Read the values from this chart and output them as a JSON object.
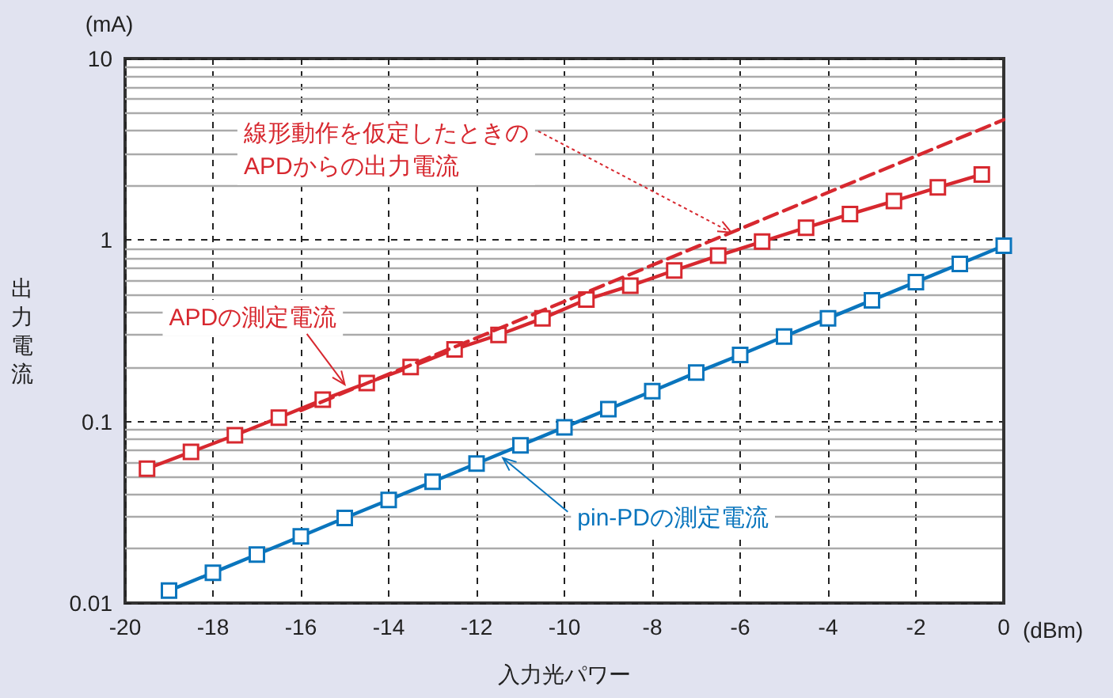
{
  "chart_data": {
    "type": "line",
    "xlabel": "入力光パワー",
    "ylabel": "出力電流",
    "xlim": [
      -20,
      0
    ],
    "xticks": [
      -20,
      -18,
      -16,
      -14,
      -12,
      -10,
      -8,
      -6,
      -4,
      -2,
      0
    ],
    "ylim": [
      0.01,
      10
    ],
    "log": "y",
    "yticks": [
      0.01,
      {
        "value": 0.02,
        "label": null
      },
      {
        "value": 0.03,
        "label": null
      },
      {
        "value": 0.04,
        "label": null
      },
      {
        "value": 0.05,
        "label": null
      },
      {
        "value": 0.06,
        "label": null
      },
      {
        "value": 0.07,
        "label": null
      },
      {
        "value": 0.08,
        "label": null
      },
      {
        "value": 0.09,
        "label": null
      },
      0.1,
      {
        "value": 0.2,
        "label": null
      },
      {
        "value": 0.3,
        "label": null
      },
      {
        "value": 0.4,
        "label": null
      },
      {
        "value": 0.5,
        "label": null
      },
      {
        "value": 0.6,
        "label": null
      },
      {
        "value": 0.7,
        "label": null
      },
      {
        "value": 0.8,
        "label": null
      },
      {
        "value": 0.9,
        "label": null
      },
      1,
      {
        "value": 2,
        "label": null
      },
      {
        "value": 3,
        "label": null
      },
      {
        "value": 4,
        "label": null
      },
      {
        "value": 5,
        "label": null
      },
      {
        "value": 6,
        "label": null
      },
      {
        "value": 7,
        "label": null
      },
      {
        "value": 8,
        "label": null
      },
      {
        "value": 9,
        "label": null
      },
      10
    ],
    "grid": true,
    "marker": "square",
    "line_style": "solid",
    "series": [
      {
        "color": "#d7282f",
        "x": [
          -19.5,
          -18.5,
          -17.5,
          -16.5,
          -15.5,
          -14.5,
          -13.5,
          -12.5,
          -11.5,
          -10.5,
          -9.5,
          -8.5,
          -7.5,
          -6.5,
          -5.5,
          -4.5,
          -3.5,
          -2.5,
          -1.5,
          -0.5
        ],
        "values": [
          0.055,
          0.068,
          0.084,
          0.105,
          0.132,
          0.163,
          0.2,
          0.25,
          0.3,
          0.37,
          0.47,
          0.56,
          0.68,
          0.82,
          0.98,
          1.17,
          1.39,
          1.64,
          1.95,
          2.3
        ]
      },
      {
        "color": "#0a75bd",
        "x": [
          -19,
          -18,
          -17,
          -16,
          -15,
          -14,
          -13,
          -12,
          -11,
          -10,
          -9,
          -8,
          -7,
          -6,
          -5,
          -4,
          -3,
          -2,
          -1,
          0
        ],
        "values": [
          0.0117,
          0.0147,
          0.0185,
          0.0233,
          0.0294,
          0.037,
          0.0466,
          0.0587,
          0.0739,
          0.093,
          0.117,
          0.147,
          0.186,
          0.233,
          0.294,
          0.37,
          0.466,
          0.587,
          0.739,
          0.93
        ]
      },
      {
        "color": "#d7282f",
        "x": [
          -16,
          0
        ],
        "values": [
          0.115,
          4.6
        ],
        "marker": "none",
        "line_style": "dashed"
      }
    ],
    "annotations": [
      {
        "text": "線形動作を仮定したときの\nAPDからの出力電流",
        "x": -6.2,
        "y": 1.1
      },
      {
        "text": "APDの測定電流",
        "x": -15,
        "y": 0.16
      },
      {
        "text": "pin-PDの測定電流",
        "x": -11.4,
        "y": 0.063
      },
      "(mA)",
      "(dBm)"
    ]
  }
}
